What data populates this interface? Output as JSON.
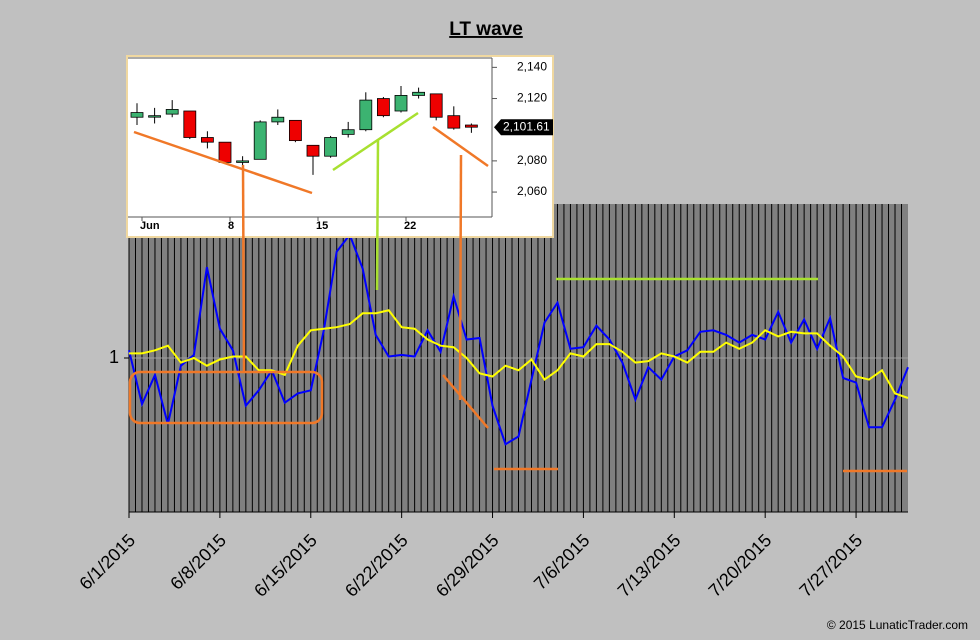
{
  "chart_data": [
    {
      "type": "line",
      "title": "LT wave",
      "x": [
        "6/1/2015",
        "6/2/2015",
        "6/3/2015",
        "6/4/2015",
        "6/5/2015",
        "6/6/2015",
        "6/7/2015",
        "6/8/2015",
        "6/9/2015",
        "6/10/2015",
        "6/11/2015",
        "6/12/2015",
        "6/13/2015",
        "6/14/2015",
        "6/15/2015",
        "6/16/2015",
        "6/17/2015",
        "6/18/2015",
        "6/19/2015",
        "6/20/2015",
        "6/21/2015",
        "6/22/2015",
        "6/23/2015",
        "6/24/2015",
        "6/25/2015",
        "6/26/2015",
        "6/27/2015",
        "6/28/2015",
        "6/29/2015",
        "6/30/2015",
        "7/1/2015",
        "7/2/2015",
        "7/3/2015",
        "7/4/2015",
        "7/5/2015",
        "7/6/2015",
        "7/7/2015",
        "7/8/2015",
        "7/9/2015",
        "7/10/2015",
        "7/11/2015",
        "7/12/2015",
        "7/13/2015",
        "7/14/2015",
        "7/15/2015",
        "7/16/2015",
        "7/17/2015",
        "7/18/2015",
        "7/19/2015",
        "7/20/2015",
        "7/21/2015",
        "7/22/2015",
        "7/23/2015",
        "7/24/2015",
        "7/25/2015",
        "7/26/2015",
        "7/27/2015",
        "7/28/2015",
        "7/29/2015",
        "7/30/2015",
        "7/31/2015"
      ],
      "series": [
        {
          "color": "#0000ff",
          "values": [
            1.05,
            0.7,
            0.89,
            0.57,
            0.95,
            1.02,
            1.59,
            1.19,
            1.05,
            0.69,
            0.79,
            0.92,
            0.71,
            0.77,
            0.79,
            1.18,
            1.69,
            1.8,
            1.58,
            1.15,
            1.01,
            1.02,
            1.01,
            1.18,
            1.04,
            1.4,
            1.12,
            1.13,
            0.69,
            0.44,
            0.49,
            0.86,
            1.23,
            1.36,
            1.06,
            1.07,
            1.21,
            1.12,
            0.97,
            0.73,
            0.94,
            0.86,
            1.01,
            1.05,
            1.17,
            1.18,
            1.15,
            1.1,
            1.15,
            1.12,
            1.3,
            1.1,
            1.25,
            1.06,
            1.26,
            0.87,
            0.84,
            0.55,
            0.55,
            0.73,
            0.94
          ]
        },
        {
          "color": "#ffff00",
          "values": [
            1.03,
            1.03,
            1.05,
            1.08,
            0.97,
            1.0,
            0.95,
            0.99,
            1.01,
            1.01,
            0.92,
            0.92,
            0.89,
            1.08,
            1.18,
            1.19,
            1.2,
            1.22,
            1.29,
            1.29,
            1.31,
            1.2,
            1.19,
            1.12,
            1.08,
            1.07,
            1.0,
            0.9,
            0.88,
            0.95,
            0.92,
            0.99,
            0.86,
            0.92,
            1.03,
            1.01,
            1.09,
            1.09,
            1.04,
            0.97,
            0.98,
            1.03,
            1.01,
            0.97,
            1.04,
            1.04,
            1.1,
            1.06,
            1.1,
            1.18,
            1.14,
            1.17,
            1.16,
            1.16,
            1.08,
            1.01,
            0.88,
            0.86,
            0.92,
            0.77,
            0.74
          ]
        }
      ],
      "xlim": [
        "6/1/2015",
        "7/31/2015"
      ],
      "xticks": [
        "6/1/2015",
        "6/8/2015",
        "6/15/2015",
        "6/22/2015",
        "6/29/2015",
        "7/6/2015",
        "7/13/2015",
        "7/20/2015",
        "7/27/2015"
      ],
      "ylim": [
        0,
        2
      ],
      "yticks": [
        1
      ],
      "grid": true
    },
    {
      "type": "candlestick",
      "categories": [
        "Jun",
        null,
        null,
        null,
        null,
        "8",
        null,
        null,
        null,
        null,
        "15",
        null,
        null,
        null,
        null,
        "22",
        null,
        null,
        null,
        null
      ],
      "open": [
        2108,
        2109,
        2110,
        2112,
        2095,
        2092,
        2079,
        2081,
        2105,
        2106,
        2090,
        2083,
        2097,
        2100,
        2120,
        2112,
        2122,
        2123,
        2109,
        2103
      ],
      "high": [
        2117,
        2114,
        2119,
        2112,
        2099,
        2092,
        2083,
        2106,
        2113,
        2106,
        2090,
        2096,
        2105,
        2124,
        2121,
        2128,
        2127,
        2123,
        2115,
        2104
      ],
      "low": [
        2103,
        2104,
        2108,
        2094,
        2088,
        2078,
        2077,
        2081,
        2103,
        2092,
        2071,
        2082,
        2095,
        2099,
        2108,
        2111,
        2120,
        2106,
        2100,
        2098
      ],
      "close": [
        2111,
        2109,
        2113,
        2095,
        2092,
        2079,
        2080,
        2105,
        2108,
        2093,
        2083,
        2095,
        2100,
        2119,
        2109,
        2122,
        2124,
        2108,
        2101,
        2101.61
      ],
      "up_color": "#3cb371",
      "down_color": "#ee0000",
      "ylim": [
        2044,
        2146
      ],
      "yticks": [
        {
          "value": 2060,
          "label": "2,060"
        },
        {
          "value": 2080,
          "label": "2,080"
        },
        {
          "value": 2120,
          "label": "2,120"
        },
        {
          "value": 2140,
          "label": "2,140"
        }
      ],
      "last_price_label": "2,101.61"
    }
  ],
  "footer": "© 2015 LunaticTrader.com"
}
